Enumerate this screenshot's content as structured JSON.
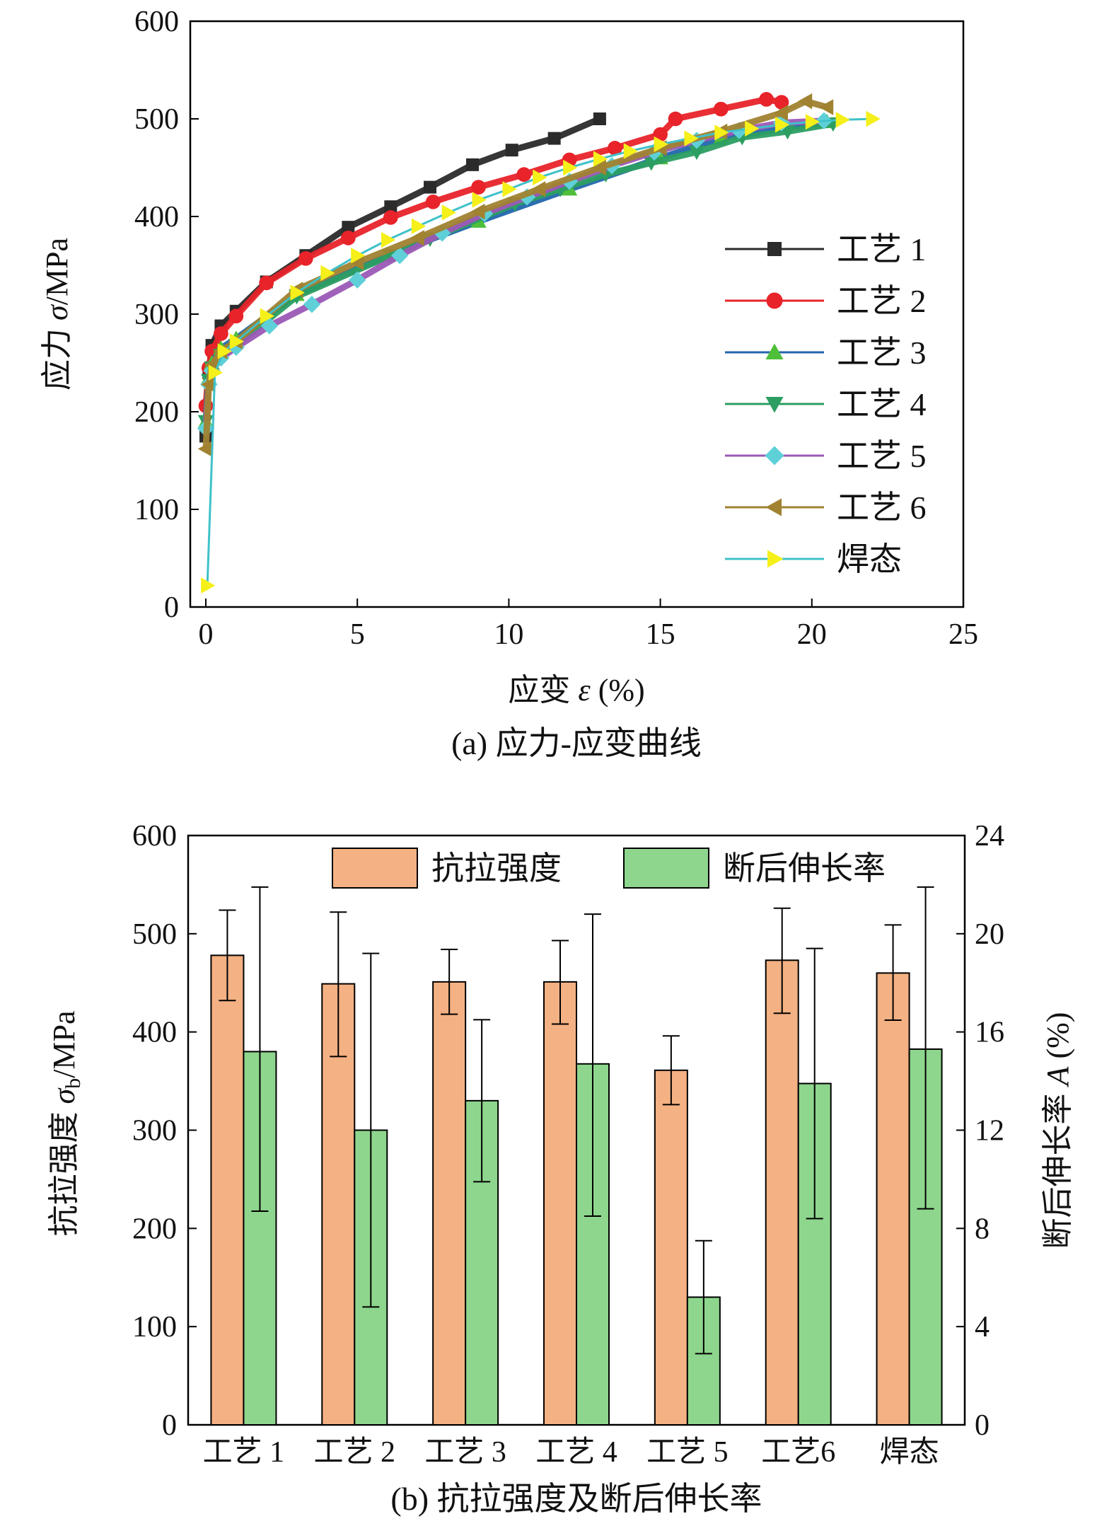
{
  "charts": {
    "a": {
      "caption": "(a) 应力-应变曲线",
      "ylabel_main": "应力 ",
      "ylabel_sym": "σ",
      "ylabel_unit": "/MPa",
      "xlabel_main": "应变 ",
      "xlabel_sym": "ε",
      "xlabel_unit": " (%)"
    },
    "b": {
      "caption": "(b) 抗拉强度及断后伸长率",
      "ylabel_main": "抗拉强度 ",
      "ylabel_sym": "σ",
      "ylabel_sub": "b",
      "ylabel_unit": "/MPa",
      "y2label_main": "断后伸长率 ",
      "y2label_sym": "A",
      "y2label_unit": " (%)"
    }
  },
  "chart_data": [
    {
      "type": "line",
      "xlim": [
        0,
        25
      ],
      "ylim": [
        0,
        600
      ],
      "xticks": [
        0,
        5,
        10,
        15,
        20,
        25
      ],
      "yticks": [
        0,
        100,
        200,
        300,
        400,
        500,
        600
      ],
      "grid": false,
      "legend_position": "right",
      "series": [
        {
          "name": "工艺 1",
          "color": "#2b2b2b",
          "marker": "square",
          "x": [
            0.0,
            0.1,
            0.2,
            0.5,
            1.0,
            2.0,
            3.3,
            4.7,
            6.1,
            7.4,
            8.8,
            10.1,
            11.5,
            13.0
          ],
          "y": [
            175,
            240,
            268,
            288,
            303,
            333,
            360,
            389,
            410,
            430,
            453,
            468,
            480,
            500
          ]
        },
        {
          "name": "工艺 2",
          "color": "#e8232a",
          "marker": "circle",
          "x": [
            0.0,
            0.1,
            0.2,
            0.5,
            1.0,
            2.0,
            3.3,
            4.7,
            6.1,
            7.5,
            9.0,
            10.5,
            12.0,
            13.5,
            15.0,
            15.5,
            17.0,
            18.5,
            19.0
          ],
          "y": [
            206,
            245,
            262,
            280,
            298,
            332,
            357,
            378,
            399,
            415,
            430,
            443,
            458,
            470,
            484,
            500,
            510,
            520,
            517
          ]
        },
        {
          "name": "工艺 3",
          "color": "#2166ac",
          "marker": "triangle-up",
          "x": [
            0.0,
            0.1,
            0.2,
            0.5,
            1.0,
            3.0,
            6.0,
            9.0,
            12.0,
            15.0,
            17.0,
            20.5
          ],
          "y": [
            190,
            235,
            250,
            265,
            275,
            320,
            360,
            395,
            428,
            460,
            480,
            497
          ]
        },
        {
          "name": "工艺 4",
          "color": "#2c9e62",
          "marker": "triangle-down",
          "x": [
            0.0,
            0.1,
            0.2,
            0.5,
            1.0,
            3.0,
            6.1,
            7.4,
            10.2,
            11.7,
            13.2,
            14.7,
            16.2,
            17.7,
            19.2,
            20.7
          ],
          "y": [
            190,
            232,
            245,
            258,
            268,
            318,
            360,
            377,
            413,
            428,
            443,
            455,
            466,
            481,
            487,
            495
          ]
        },
        {
          "name": "工艺 5",
          "color": "#9b59b6",
          "marker": "diamond",
          "x": [
            0.0,
            0.1,
            0.2,
            0.5,
            1.0,
            2.1,
            3.5,
            5.0,
            6.4,
            7.8,
            9.2,
            10.6,
            12.0,
            13.4,
            14.8,
            16.2,
            17.6,
            19.0,
            20.4
          ],
          "y": [
            183,
            228,
            242,
            255,
            266,
            288,
            310,
            335,
            360,
            383,
            403,
            420,
            436,
            452,
            466,
            478,
            488,
            496,
            498
          ]
        },
        {
          "name": "工艺 6",
          "color": "#a08230",
          "marker": "triangle-left",
          "x": [
            0.0,
            0.1,
            0.2,
            0.5,
            1.0,
            3.0,
            5.0,
            7.0,
            9.0,
            11.0,
            13.0,
            15.0,
            17.0,
            19.0,
            19.8,
            20.5
          ],
          "y": [
            162,
            228,
            248,
            262,
            272,
            325,
            353,
            378,
            405,
            428,
            450,
            470,
            487,
            506,
            518,
            512
          ]
        },
        {
          "name": "焊态",
          "color": "#3fc1c9",
          "marker": "triangle-right",
          "x": [
            0.05,
            0.3,
            0.6,
            1.0,
            2.0,
            3.0,
            4.0,
            5.0,
            6.0,
            7.0,
            8.0,
            9.0,
            10.0,
            11.0,
            12.0,
            13.0,
            14.0,
            15.0,
            16.0,
            17.0,
            18.0,
            19.0,
            20.0,
            21.0,
            22.0
          ],
          "y": [
            22,
            240,
            262,
            272,
            298,
            322,
            342,
            360,
            376,
            390,
            404,
            417,
            428,
            440,
            450,
            459,
            467,
            474,
            480,
            486,
            490,
            494,
            497,
            499,
            500
          ]
        }
      ]
    },
    {
      "type": "bar",
      "categories": [
        "工艺 1",
        "工艺 2",
        "工艺 3",
        "工艺 4",
        "工艺 5",
        "工艺6",
        "焊态"
      ],
      "ylim": [
        0,
        600
      ],
      "y2lim": [
        0,
        24
      ],
      "yticks": [
        0,
        100,
        200,
        300,
        400,
        500,
        600
      ],
      "y2ticks": [
        0,
        4,
        8,
        12,
        16,
        20,
        24
      ],
      "grid": false,
      "legend_position": "top",
      "series": [
        {
          "name": "抗拉强度",
          "axis": "left",
          "color": "#f4b183",
          "values": [
            478,
            449,
            451,
            451,
            361,
            473,
            460
          ],
          "err_low": [
            432,
            375,
            418,
            408,
            326,
            419,
            412
          ],
          "err_high": [
            524,
            522,
            484,
            493,
            396,
            526,
            509
          ]
        },
        {
          "name": "断后伸长率",
          "axis": "right",
          "color": "#8ed68d",
          "values": [
            15.2,
            12.0,
            13.2,
            14.7,
            5.2,
            13.9,
            15.3
          ],
          "err_low": [
            8.7,
            4.8,
            9.9,
            8.5,
            2.9,
            8.4,
            8.8
          ],
          "err_high": [
            21.9,
            19.2,
            16.5,
            20.8,
            7.5,
            19.4,
            21.9
          ]
        }
      ]
    }
  ]
}
